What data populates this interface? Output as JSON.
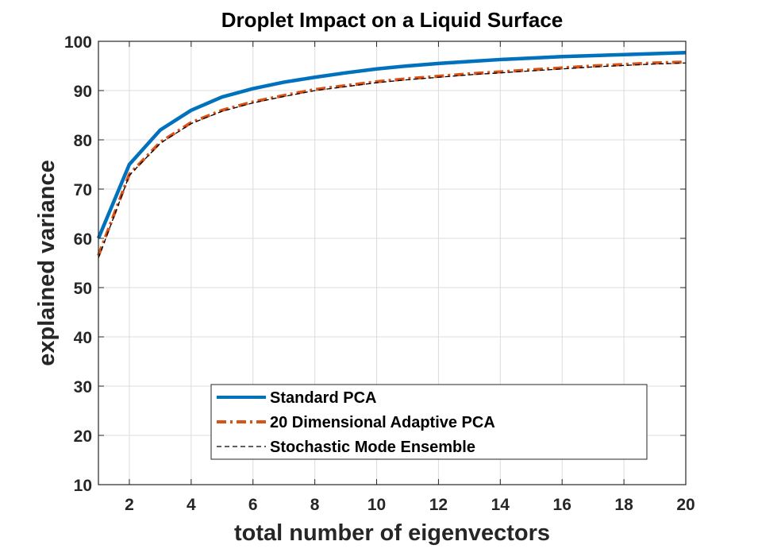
{
  "chart_data": {
    "type": "line",
    "title": "Droplet Impact on a Liquid Surface",
    "xlabel": "total number of eigenvectors",
    "ylabel": "explained variance",
    "xlim": [
      1,
      20
    ],
    "ylim": [
      10,
      100
    ],
    "xticks": [
      2,
      4,
      6,
      8,
      10,
      12,
      14,
      16,
      18,
      20
    ],
    "yticks": [
      10,
      20,
      30,
      40,
      50,
      60,
      70,
      80,
      90,
      100
    ],
    "grid": true,
    "legend_position": "bottom-center",
    "x": [
      1,
      2,
      3,
      4,
      5,
      6,
      7,
      8,
      9,
      10,
      11,
      12,
      13,
      14,
      15,
      16,
      17,
      18,
      19,
      20
    ],
    "series": [
      {
        "name": "Standard PCA",
        "color": "#0072BD",
        "style": "solid",
        "values": [
          60,
          75,
          82,
          86,
          88.7,
          90.4,
          91.7,
          92.7,
          93.6,
          94.4,
          95.0,
          95.5,
          95.9,
          96.3,
          96.6,
          96.9,
          97.1,
          97.3,
          97.5,
          97.7
        ]
      },
      {
        "name": "20 Dimensional Adaptive PCA",
        "color": "#D95319",
        "style": "dashdot",
        "values": [
          56.5,
          73,
          79.5,
          83.5,
          86,
          87.7,
          89,
          90.2,
          91,
          91.8,
          92.4,
          92.9,
          93.4,
          93.8,
          94.2,
          94.6,
          95,
          95.3,
          95.6,
          95.8
        ]
      },
      {
        "name": "Stochastic Mode Ensemble",
        "color": "#000000",
        "style": "dashed",
        "values": [
          56,
          72.8,
          79.3,
          83.3,
          85.8,
          87.5,
          88.8,
          90,
          90.8,
          91.6,
          92.2,
          92.7,
          93.2,
          93.6,
          94,
          94.4,
          94.8,
          95.1,
          95.4,
          95.6
        ]
      }
    ]
  }
}
